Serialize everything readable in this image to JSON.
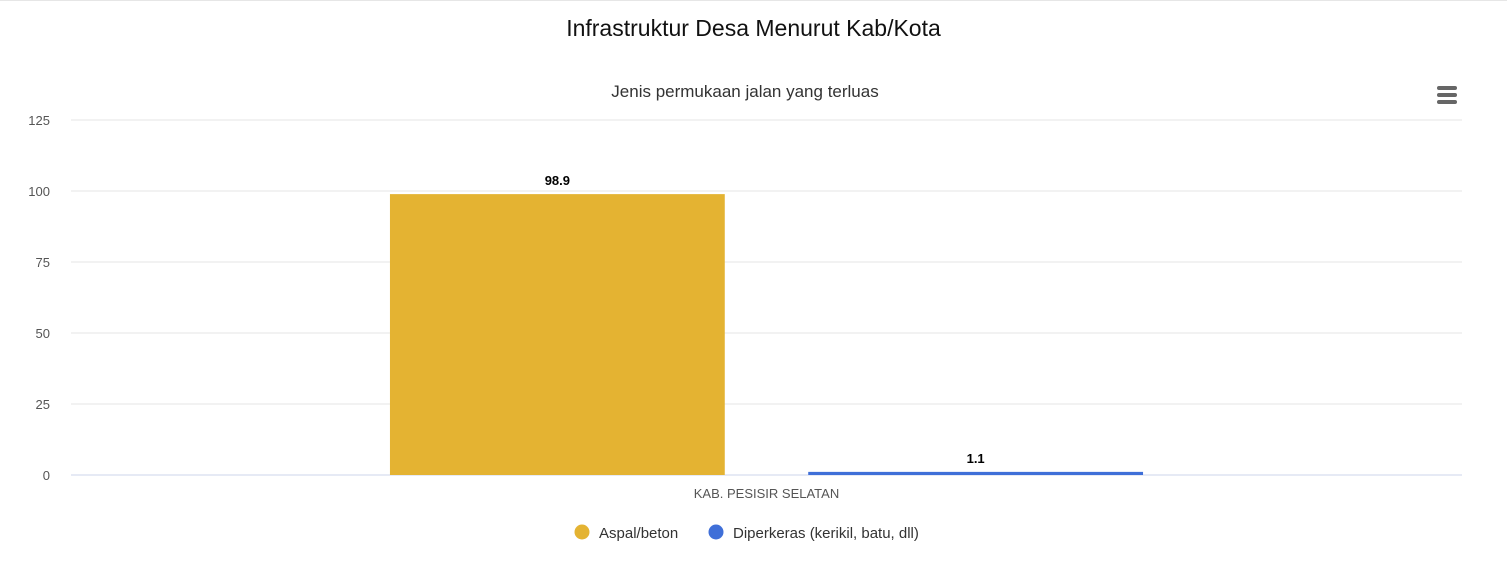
{
  "page": {
    "title": "Infrastruktur Desa Menurut Kab/Kota"
  },
  "menu": {
    "icon": "hamburger-menu-icon"
  },
  "chart_data": {
    "type": "bar",
    "title": "",
    "subtitle": "Jenis permukaan jalan yang terluas",
    "categories": [
      "KAB. PESISIR SELATAN"
    ],
    "series": [
      {
        "name": "Aspal/beton",
        "values": [
          98.9
        ],
        "color": "#e4b332"
      },
      {
        "name": "Diperkeras (kerikil, batu, dll)",
        "values": [
          1.1
        ],
        "color": "#3f6fd8"
      }
    ],
    "data_labels": [
      "98.9",
      "1.1"
    ],
    "ylim": [
      0,
      125
    ],
    "yticks": [
      0,
      25,
      50,
      75,
      100,
      125
    ],
    "xlabel": "",
    "ylabel": "",
    "grid": true,
    "legend_position": "bottom-center"
  }
}
